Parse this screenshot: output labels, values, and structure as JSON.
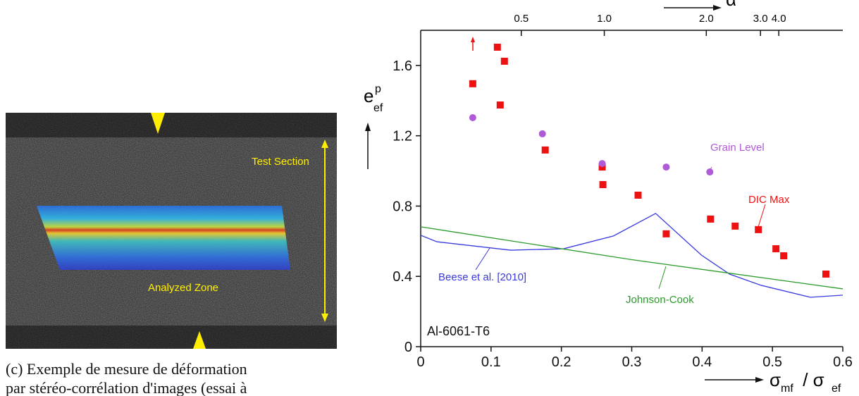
{
  "figure": {
    "image_labels": [
      "Test Section",
      "Analyzed Zone"
    ],
    "caption": [
      "(c) Exemple de mesure de déformation",
      "par stéréo-corrélation d'images (essai à"
    ]
  },
  "chart_data": {
    "type": "scatter",
    "x_label": {
      "symbol": "σ",
      "sub": "mf",
      "sep": " / σ",
      "sub2": "ef"
    },
    "y_label": {
      "symbol": "e",
      "sup": "p",
      "sub": "ef"
    },
    "x2_label": "α",
    "xlim": [
      0,
      0.6
    ],
    "xticks": [
      0,
      0.1,
      0.2,
      0.3,
      0.4,
      0.5,
      0.6
    ],
    "ylim": [
      0,
      1.8
    ],
    "yticks": [
      0,
      0.4,
      0.8,
      1.2,
      1.6
    ],
    "x2ticks": [
      {
        "value": 0.143,
        "label": "0.5"
      },
      {
        "value": 0.261,
        "label": "1.0"
      },
      {
        "value": 0.406,
        "label": "2.0"
      },
      {
        "value": 0.483,
        "label": "3.0"
      },
      {
        "value": 0.509,
        "label": "4.0"
      }
    ],
    "annotations": [
      "Grain Level",
      "DIC Max",
      "Beese et al. [2010]",
      "Johnson-Cook",
      "Al-6061-T6"
    ],
    "series": [
      {
        "name": "DIC Max",
        "color": "#ee1111",
        "marker": "square",
        "x": [
          0.074,
          0.109,
          0.119,
          0.113,
          0.177,
          0.258,
          0.259,
          0.309,
          0.349,
          0.412,
          0.447,
          0.48,
          0.505,
          0.516,
          0.576
        ],
        "values": [
          1.496,
          1.704,
          1.624,
          1.375,
          1.119,
          1.022,
          0.922,
          0.862,
          0.642,
          0.726,
          0.686,
          0.666,
          0.557,
          0.517,
          0.413
        ]
      },
      {
        "name": "Grain Level",
        "color": "#b05ad8",
        "marker": "circle",
        "x": [
          0.074,
          0.173,
          0.258,
          0.349,
          0.411
        ],
        "values": [
          1.303,
          1.211,
          1.042,
          1.022,
          0.994
        ]
      },
      {
        "name": "Beese et al. [2010]",
        "color": "#3a3ae0",
        "marker": "line",
        "x": [
          0,
          0.023,
          0.128,
          0.203,
          0.274,
          0.334,
          0.399,
          0.439,
          0.484,
          0.554,
          0.6
        ],
        "values": [
          0.634,
          0.597,
          0.549,
          0.557,
          0.63,
          0.758,
          0.521,
          0.413,
          0.349,
          0.281,
          0.293
        ]
      },
      {
        "name": "Johnson-Cook",
        "color": "#2a9a2a",
        "marker": "line",
        "x": [
          0,
          0.3,
          0.6
        ],
        "values": [
          0.682,
          0.495,
          0.329
        ]
      }
    ]
  }
}
